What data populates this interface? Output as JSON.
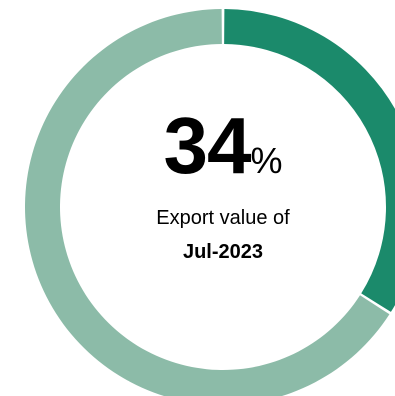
{
  "chart_data": {
    "type": "pie",
    "donut": true,
    "slices": [
      {
        "value": 34,
        "color": "#1b8a6b"
      },
      {
        "value": 66,
        "color": "#8cbba8"
      }
    ],
    "center": {
      "value": "34",
      "unit": "%",
      "label": "Export value of",
      "period": "Jul-2023"
    }
  }
}
